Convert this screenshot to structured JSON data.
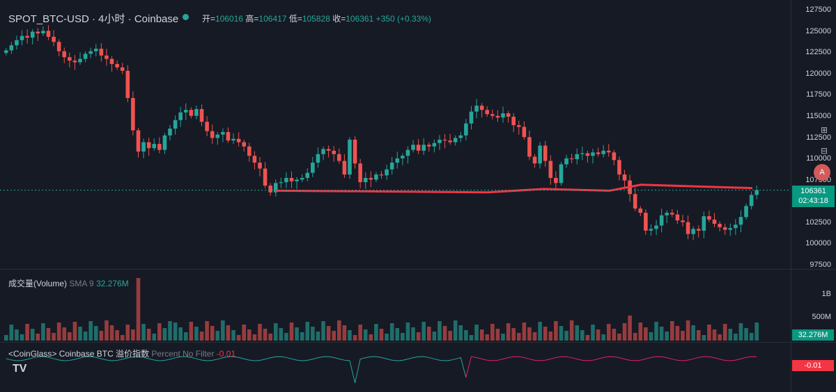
{
  "header": {
    "symbol": "SPOT_BTC-USD · 4小时 · Coinbase",
    "open_label": "开=",
    "open": "106016",
    "high_label": "高=",
    "high": "106417",
    "low_label": "低=",
    "low": "105828",
    "close_label": "收=",
    "close": "106361",
    "change": "+350 (+0.33%)"
  },
  "price_axis": {
    "ticks": [
      "127500",
      "125000",
      "122500",
      "120000",
      "117500",
      "115000",
      "112500",
      "110000",
      "107500",
      "102500",
      "100000",
      "97500"
    ],
    "last_price": "106361",
    "countdown": "02:43:18"
  },
  "volume": {
    "label": "成交量(Volume)",
    "sma": "SMA 9",
    "value": "32.276M",
    "ticks": [
      "1B",
      "500M"
    ],
    "badge": "32.276M"
  },
  "premium": {
    "label": "<CoinGlass> Coinbase BTC 溢价指数",
    "mode": "Percent No Filter",
    "value": "-0.01",
    "badge": "-0.01"
  },
  "icons": [
    "plus-square-icon",
    "minus-square-icon",
    "alert-badge-icon",
    "tradingview-logo-icon"
  ],
  "colors": {
    "up": "#26a69a",
    "down": "#ef5350",
    "line": "#f23645",
    "premium_up": "#26a69a",
    "premium_down": "#e91e63"
  },
  "chart_data": {
    "type": "candlestick",
    "ylim": [
      97500,
      127500
    ],
    "closes": [
      122800,
      123400,
      124000,
      124500,
      124300,
      125000,
      124800,
      125100,
      124400,
      123800,
      122700,
      122000,
      121600,
      121400,
      121800,
      122400,
      122700,
      123000,
      122200,
      121800,
      121200,
      120800,
      120400,
      117200,
      113400,
      110900,
      112000,
      111300,
      111800,
      111100,
      112800,
      113600,
      114600,
      115500,
      115800,
      115100,
      115900,
      114400,
      113300,
      112500,
      112900,
      113200,
      112200,
      112400,
      112000,
      111500,
      110400,
      109600,
      108900,
      106900,
      106100,
      107200,
      107300,
      107800,
      107400,
      107600,
      107800,
      108400,
      109600,
      110600,
      111200,
      111000,
      110600,
      109800,
      108200,
      112300,
      109500,
      107300,
      107800,
      107600,
      108200,
      108100,
      108800,
      109600,
      110100,
      110400,
      111100,
      111700,
      111000,
      111700,
      111500,
      111900,
      112300,
      112200,
      112000,
      112500,
      112800,
      114200,
      115600,
      116300,
      115800,
      115300,
      115100,
      114900,
      115400,
      115000,
      114000,
      113800,
      112600,
      110300,
      109500,
      111600,
      109800,
      107800,
      107200,
      109400,
      110100,
      110000,
      110600,
      110700,
      110400,
      110800,
      110600,
      111000,
      110800,
      109900,
      108200,
      107500,
      105900,
      104200,
      103700,
      101600,
      101800,
      102200,
      103400,
      103700,
      103500,
      102800,
      102600,
      101200,
      101800,
      101600,
      103300,
      102900,
      102400,
      102000,
      101700,
      101900,
      102300,
      103200,
      104500,
      105800,
      106361
    ],
    "volume_profile": "mostly 50M–300M bars with a spike near 1B around early period",
    "premium_index_series": "line oscillating around 0, green in first half, red/pink in second half; current -0.01",
    "horizontal_line": "red trend line near 105,000–106,500 from mid chart to end"
  }
}
